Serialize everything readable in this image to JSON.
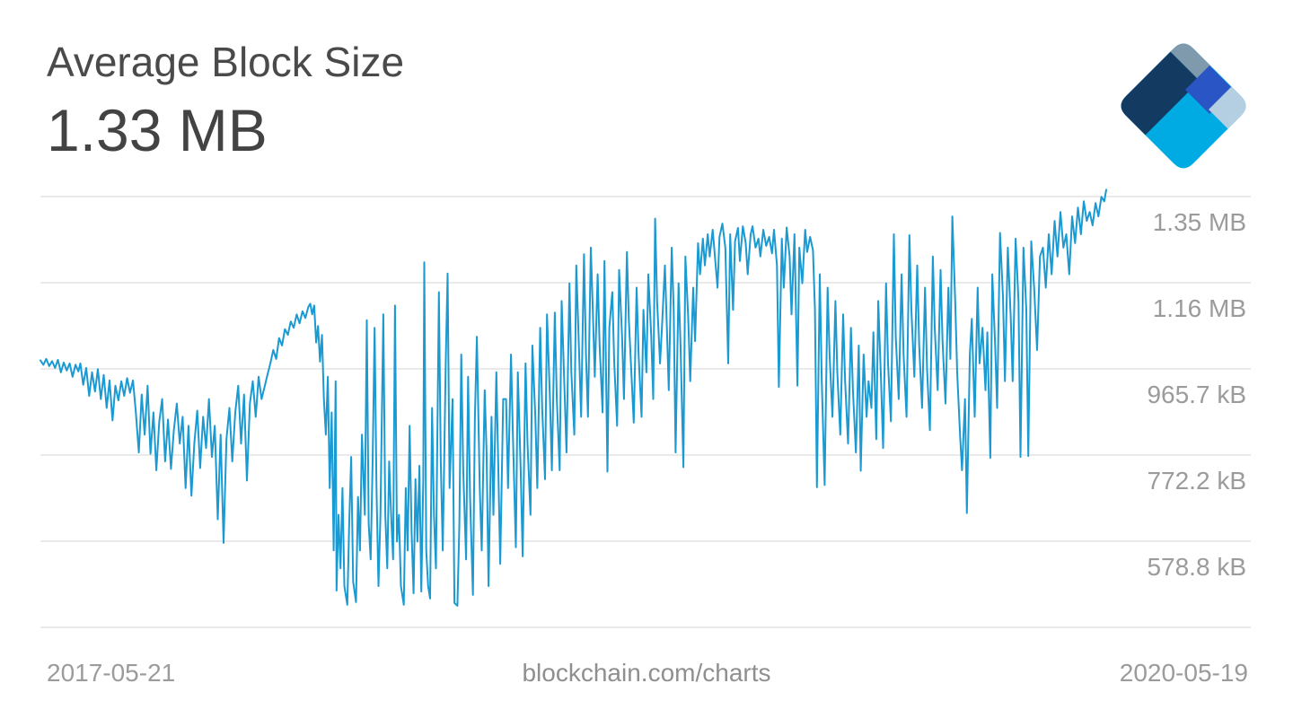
{
  "header": {
    "title": "Average Block Size",
    "value": "1.33 MB"
  },
  "logo": {
    "name": "blockchain-logo",
    "colors": {
      "navy": "#133a61",
      "gray": "#7f9aad",
      "royal": "#2a55c4",
      "cyan": "#00abe4",
      "light_blue": "#b5cfe2"
    }
  },
  "footer": {
    "start_date": "2017-05-21",
    "source": "blockchain.com/charts",
    "end_date": "2020-05-19"
  },
  "chart_data": {
    "type": "line",
    "title": "Average Block Size",
    "current_value": "1.33 MB",
    "unit": "kB",
    "line_color": "#1b9ad2",
    "grid_color": "#dedede",
    "legend": "none",
    "grid": "horizontal-only",
    "x_start_date": "2017-05-21",
    "x_end_date": "2020-05-19",
    "x_unit": "days_since_start",
    "x_range": [
      0,
      1094
    ],
    "y_axis_side": "right",
    "ylim_kB": [
      385.3,
      1352.6
    ],
    "y_gridlines": [
      {
        "label": "1.35 MB",
        "kB": 1352.6
      },
      {
        "label": "1.16 MB",
        "kB": 1159.1
      },
      {
        "label": "965.7 kB",
        "kB": 965.7
      },
      {
        "label": "772.2 kB",
        "kB": 772.2
      },
      {
        "label": "578.8 kB",
        "kB": 578.8
      },
      {
        "label": "",
        "kB": 385.3
      }
    ],
    "points": [
      [
        0,
        985
      ],
      [
        3,
        975
      ],
      [
        6,
        988
      ],
      [
        9,
        972
      ],
      [
        12,
        983
      ],
      [
        15,
        968
      ],
      [
        18,
        986
      ],
      [
        21,
        958
      ],
      [
        24,
        980
      ],
      [
        27,
        962
      ],
      [
        30,
        978
      ],
      [
        33,
        948
      ],
      [
        36,
        975
      ],
      [
        39,
        960
      ],
      [
        41,
        978
      ],
      [
        44,
        930
      ],
      [
        47,
        968
      ],
      [
        50,
        905
      ],
      [
        53,
        958
      ],
      [
        56,
        915
      ],
      [
        59,
        965
      ],
      [
        62,
        898
      ],
      [
        65,
        952
      ],
      [
        68,
        878
      ],
      [
        71,
        940
      ],
      [
        74,
        850
      ],
      [
        77,
        928
      ],
      [
        80,
        895
      ],
      [
        83,
        938
      ],
      [
        86,
        905
      ],
      [
        89,
        945
      ],
      [
        92,
        912
      ],
      [
        95,
        940
      ],
      [
        98,
        868
      ],
      [
        101,
        778
      ],
      [
        104,
        908
      ],
      [
        107,
        818
      ],
      [
        110,
        928
      ],
      [
        113,
        775
      ],
      [
        116,
        868
      ],
      [
        119,
        738
      ],
      [
        122,
        848
      ],
      [
        125,
        898
      ],
      [
        128,
        758
      ],
      [
        131,
        852
      ],
      [
        134,
        741
      ],
      [
        137,
        828
      ],
      [
        140,
        888
      ],
      [
        143,
        798
      ],
      [
        146,
        858
      ],
      [
        149,
        698
      ],
      [
        152,
        838
      ],
      [
        155,
        681
      ],
      [
        158,
        798
      ],
      [
        161,
        872
      ],
      [
        164,
        743
      ],
      [
        167,
        858
      ],
      [
        170,
        788
      ],
      [
        173,
        898
      ],
      [
        176,
        768
      ],
      [
        179,
        838
      ],
      [
        182,
        628
      ],
      [
        185,
        818
      ],
      [
        188,
        575
      ],
      [
        191,
        808
      ],
      [
        194,
        878
      ],
      [
        197,
        758
      ],
      [
        200,
        868
      ],
      [
        203,
        928
      ],
      [
        206,
        798
      ],
      [
        209,
        908
      ],
      [
        212,
        715
      ],
      [
        215,
        888
      ],
      [
        218,
        938
      ],
      [
        221,
        858
      ],
      [
        224,
        948
      ],
      [
        227,
        898
      ],
      [
        230,
        925
      ],
      [
        233,
        952
      ],
      [
        236,
        978
      ],
      [
        239,
        1008
      ],
      [
        242,
        988
      ],
      [
        245,
        1035
      ],
      [
        248,
        1018
      ],
      [
        251,
        1055
      ],
      [
        254,
        1042
      ],
      [
        257,
        1072
      ],
      [
        260,
        1058
      ],
      [
        263,
        1088
      ],
      [
        266,
        1068
      ],
      [
        269,
        1095
      ],
      [
        272,
        1080
      ],
      [
        275,
        1105
      ],
      [
        277,
        1112
      ],
      [
        279,
        1088
      ],
      [
        281,
        1108
      ],
      [
        283,
        1025
      ],
      [
        285,
        1062
      ],
      [
        287,
        982
      ],
      [
        289,
        1042
      ],
      [
        291,
        898
      ],
      [
        293,
        818
      ],
      [
        295,
        948
      ],
      [
        297,
        698
      ],
      [
        299,
        868
      ],
      [
        301,
        558
      ],
      [
        303,
        938
      ],
      [
        304,
        468
      ],
      [
        306,
        638
      ],
      [
        308,
        518
      ],
      [
        310,
        698
      ],
      [
        312,
        478
      ],
      [
        315,
        436
      ],
      [
        317,
        618
      ],
      [
        319,
        768
      ],
      [
        321,
        488
      ],
      [
        324,
        442
      ],
      [
        326,
        678
      ],
      [
        328,
        558
      ],
      [
        330,
        818
      ],
      [
        333,
        638
      ],
      [
        335,
        1075
      ],
      [
        337,
        618
      ],
      [
        339,
        538
      ],
      [
        341,
        758
      ],
      [
        343,
        1058
      ],
      [
        345,
        698
      ],
      [
        347,
        478
      ],
      [
        349,
        638
      ],
      [
        352,
        1088
      ],
      [
        354,
        638
      ],
      [
        356,
        518
      ],
      [
        358,
        758
      ],
      [
        360,
        638
      ],
      [
        362,
        538
      ],
      [
        364,
        1108
      ],
      [
        366,
        578
      ],
      [
        368,
        638
      ],
      [
        370,
        478
      ],
      [
        373,
        436
      ],
      [
        375,
        698
      ],
      [
        377,
        558
      ],
      [
        379,
        838
      ],
      [
        381,
        598
      ],
      [
        383,
        462
      ],
      [
        385,
        718
      ],
      [
        387,
        578
      ],
      [
        389,
        748
      ],
      [
        391,
        466
      ],
      [
        393,
        718
      ],
      [
        394,
        1205
      ],
      [
        396,
        558
      ],
      [
        398,
        478
      ],
      [
        400,
        450
      ],
      [
        402,
        878
      ],
      [
        404,
        638
      ],
      [
        406,
        518
      ],
      [
        409,
        1138
      ],
      [
        411,
        758
      ],
      [
        413,
        558
      ],
      [
        416,
        978
      ],
      [
        418,
        1180
      ],
      [
        420,
        698
      ],
      [
        423,
        898
      ],
      [
        425,
        440
      ],
      [
        428,
        434
      ],
      [
        430,
        618
      ],
      [
        432,
        998
      ],
      [
        434,
        738
      ],
      [
        437,
        538
      ],
      [
        439,
        948
      ],
      [
        441,
        678
      ],
      [
        444,
        458
      ],
      [
        446,
        858
      ],
      [
        448,
        1038
      ],
      [
        451,
        698
      ],
      [
        453,
        558
      ],
      [
        456,
        918
      ],
      [
        458,
        778
      ],
      [
        460,
        478
      ],
      [
        463,
        858
      ],
      [
        465,
        638
      ],
      [
        468,
        958
      ],
      [
        470,
        738
      ],
      [
        472,
        528
      ],
      [
        475,
        898
      ],
      [
        478,
        898
      ],
      [
        480,
        698
      ],
      [
        483,
        998
      ],
      [
        485,
        818
      ],
      [
        488,
        565
      ],
      [
        490,
        958
      ],
      [
        493,
        738
      ],
      [
        495,
        545
      ],
      [
        498,
        978
      ],
      [
        500,
        798
      ],
      [
        503,
        638
      ],
      [
        505,
        1018
      ],
      [
        508,
        858
      ],
      [
        510,
        698
      ],
      [
        513,
        1058
      ],
      [
        515,
        878
      ],
      [
        518,
        718
      ],
      [
        520,
        1088
      ],
      [
        523,
        898
      ],
      [
        525,
        738
      ],
      [
        528,
        1092
      ],
      [
        530,
        898
      ],
      [
        533,
        738
      ],
      [
        535,
        1118
      ],
      [
        538,
        918
      ],
      [
        540,
        778
      ],
      [
        543,
        1158
      ],
      [
        545,
        958
      ],
      [
        548,
        818
      ],
      [
        550,
        1198
      ],
      [
        553,
        998
      ],
      [
        555,
        858
      ],
      [
        558,
        1223
      ],
      [
        560,
        998
      ],
      [
        562,
        858
      ],
      [
        565,
        1238
      ],
      [
        567,
        1098
      ],
      [
        569,
        948
      ],
      [
        572,
        1178
      ],
      [
        574,
        1018
      ],
      [
        577,
        868
      ],
      [
        579,
        1208
      ],
      [
        582,
        735
      ],
      [
        584,
        1058
      ],
      [
        587,
        1138
      ],
      [
        589,
        978
      ],
      [
        592,
        838
      ],
      [
        594,
        1188
      ],
      [
        597,
        1038
      ],
      [
        599,
        898
      ],
      [
        602,
        1228
      ],
      [
        604,
        1078
      ],
      [
        607,
        938
      ],
      [
        609,
        845
      ],
      [
        612,
        1148
      ],
      [
        614,
        998
      ],
      [
        617,
        858
      ],
      [
        619,
        1098
      ],
      [
        622,
        958
      ],
      [
        624,
        1178
      ],
      [
        627,
        1038
      ],
      [
        629,
        898
      ],
      [
        631,
        1303
      ],
      [
        633,
        1118
      ],
      [
        636,
        978
      ],
      [
        638,
        1058
      ],
      [
        641,
        1198
      ],
      [
        643,
        1058
      ],
      [
        645,
        918
      ],
      [
        648,
        1238
      ],
      [
        650,
        1098
      ],
      [
        652,
        778
      ],
      [
        655,
        1158
      ],
      [
        657,
        1018
      ],
      [
        660,
        745
      ],
      [
        662,
        1218
      ],
      [
        665,
        1078
      ],
      [
        667,
        938
      ],
      [
        670,
        1148
      ],
      [
        672,
        1028
      ],
      [
        675,
        1248
      ],
      [
        677,
        1178
      ],
      [
        680,
        1258
      ],
      [
        682,
        1198
      ],
      [
        685,
        1268
      ],
      [
        687,
        1218
      ],
      [
        690,
        1278
      ],
      [
        692,
        1228
      ],
      [
        695,
        1148
      ],
      [
        697,
        1262
      ],
      [
        700,
        1292
      ],
      [
        703,
        1238
      ],
      [
        706,
        978
      ],
      [
        708,
        1268
      ],
      [
        711,
        1098
      ],
      [
        713,
        1252
      ],
      [
        716,
        1282
      ],
      [
        718,
        1208
      ],
      [
        721,
        1286
      ],
      [
        724,
        1248
      ],
      [
        726,
        1178
      ],
      [
        729,
        1268
      ],
      [
        731,
        1286
      ],
      [
        734,
        1238
      ],
      [
        737,
        1258
      ],
      [
        739,
        1218
      ],
      [
        742,
        1278
      ],
      [
        745,
        1242
      ],
      [
        748,
        1262
      ],
      [
        751,
        1225
      ],
      [
        753,
        1278
      ],
      [
        756,
        1198
      ],
      [
        758,
        925
      ],
      [
        761,
        1258
      ],
      [
        763,
        1148
      ],
      [
        766,
        1283
      ],
      [
        769,
        1218
      ],
      [
        771,
        1088
      ],
      [
        774,
        1268
      ],
      [
        777,
        928
      ],
      [
        779,
        1238
      ],
      [
        782,
        1158
      ],
      [
        785,
        1278
      ],
      [
        787,
        1228
      ],
      [
        790,
        1262
      ],
      [
        793,
        1232
      ],
      [
        795,
        1098
      ],
      [
        797,
        700
      ],
      [
        800,
        1178
      ],
      [
        802,
        938
      ],
      [
        805,
        705
      ],
      [
        808,
        1148
      ],
      [
        810,
        998
      ],
      [
        813,
        858
      ],
      [
        816,
        1118
      ],
      [
        818,
        958
      ],
      [
        821,
        818
      ],
      [
        824,
        1088
      ],
      [
        826,
        938
      ],
      [
        829,
        798
      ],
      [
        832,
        1058
      ],
      [
        834,
        918
      ],
      [
        837,
        778
      ],
      [
        840,
        1018
      ],
      [
        842,
        737
      ],
      [
        845,
        998
      ],
      [
        848,
        858
      ],
      [
        850,
        938
      ],
      [
        853,
        878
      ],
      [
        855,
        1048
      ],
      [
        858,
        808
      ],
      [
        860,
        1118
      ],
      [
        863,
        928
      ],
      [
        865,
        788
      ],
      [
        868,
        1158
      ],
      [
        870,
        978
      ],
      [
        873,
        848
      ],
      [
        876,
        1268
      ],
      [
        878,
        1038
      ],
      [
        881,
        898
      ],
      [
        884,
        1178
      ],
      [
        886,
        998
      ],
      [
        889,
        858
      ],
      [
        892,
        1266
      ],
      [
        894,
        1098
      ],
      [
        897,
        948
      ],
      [
        900,
        1198
      ],
      [
        902,
        1018
      ],
      [
        905,
        878
      ],
      [
        908,
        1148
      ],
      [
        910,
        968
      ],
      [
        913,
        828
      ],
      [
        916,
        1218
      ],
      [
        918,
        1058
      ],
      [
        921,
        918
      ],
      [
        924,
        1188
      ],
      [
        926,
        1028
      ],
      [
        929,
        888
      ],
      [
        932,
        1148
      ],
      [
        934,
        988
      ],
      [
        936,
        1308
      ],
      [
        939,
        1118
      ],
      [
        941,
        958
      ],
      [
        944,
        818
      ],
      [
        946,
        738
      ],
      [
        949,
        898
      ],
      [
        951,
        642
      ],
      [
        954,
        998
      ],
      [
        956,
        1078
      ],
      [
        959,
        858
      ],
      [
        962,
        1148
      ],
      [
        964,
        978
      ],
      [
        967,
        1058
      ],
      [
        970,
        918
      ],
      [
        972,
        1048
      ],
      [
        975,
        766
      ],
      [
        977,
        1178
      ],
      [
        980,
        1018
      ],
      [
        982,
        878
      ],
      [
        985,
        1271
      ],
      [
        988,
        1128
      ],
      [
        990,
        938
      ],
      [
        993,
        1238
      ],
      [
        996,
        1078
      ],
      [
        998,
        938
      ],
      [
        1001,
        1258
      ],
      [
        1004,
        1118
      ],
      [
        1006,
        768
      ],
      [
        1009,
        1238
      ],
      [
        1012,
        1098
      ],
      [
        1014,
        770
      ],
      [
        1017,
        1252
      ],
      [
        1020,
        1148
      ],
      [
        1023,
        1008
      ],
      [
        1026,
        1218
      ],
      [
        1029,
        1238
      ],
      [
        1032,
        1148
      ],
      [
        1035,
        1268
      ],
      [
        1038,
        1178
      ],
      [
        1041,
        1298
      ],
      [
        1044,
        1218
      ],
      [
        1047,
        1318
      ],
      [
        1050,
        1238
      ],
      [
        1053,
        1268
      ],
      [
        1056,
        1178
      ],
      [
        1059,
        1308
      ],
      [
        1062,
        1248
      ],
      [
        1065,
        1328
      ],
      [
        1068,
        1268
      ],
      [
        1071,
        1342
      ],
      [
        1074,
        1298
      ],
      [
        1077,
        1318
      ],
      [
        1080,
        1288
      ],
      [
        1083,
        1338
      ],
      [
        1086,
        1308
      ],
      [
        1089,
        1352
      ],
      [
        1092,
        1342
      ],
      [
        1094,
        1368
      ]
    ]
  }
}
